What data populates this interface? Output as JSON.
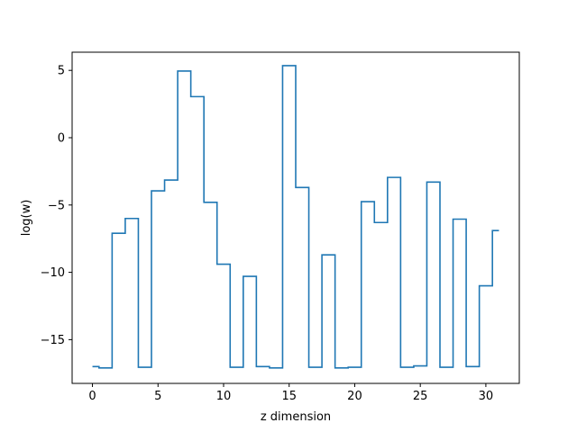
{
  "chart_data": {
    "type": "line",
    "step": "mid",
    "xlabel": "z dimension",
    "ylabel": "log(w)",
    "xlim": [
      -1.55,
      32.55
    ],
    "ylim": [
      -18.25,
      6.35
    ],
    "xticks": [
      0,
      5,
      10,
      15,
      20,
      25,
      30
    ],
    "xtick_labels": [
      "0",
      "5",
      "10",
      "15",
      "20",
      "25",
      "30"
    ],
    "yticks": [
      -15,
      -10,
      -5,
      0,
      5
    ],
    "ytick_labels": [
      "−15",
      "−10",
      "−5",
      "0",
      "5"
    ],
    "grid": false,
    "series": [
      {
        "color": "#1f77b4",
        "x": [
          0,
          1,
          2,
          3,
          4,
          5,
          6,
          7,
          8,
          9,
          10,
          11,
          12,
          13,
          14,
          15,
          16,
          17,
          18,
          19,
          20,
          21,
          22,
          23,
          24,
          25,
          26,
          27,
          28,
          29,
          30,
          31
        ],
        "y": [
          -17.0,
          -17.1,
          -7.1,
          -6.0,
          -17.05,
          -3.95,
          -3.15,
          4.95,
          3.05,
          -4.8,
          -9.4,
          -17.05,
          -10.3,
          -17.0,
          -17.1,
          5.35,
          -3.7,
          -17.05,
          -8.7,
          -17.1,
          -17.05,
          -4.75,
          -6.3,
          -2.95,
          -17.05,
          -16.95,
          -3.3,
          -17.05,
          -6.05,
          -17.0,
          -11.0,
          -6.9
        ]
      }
    ]
  }
}
